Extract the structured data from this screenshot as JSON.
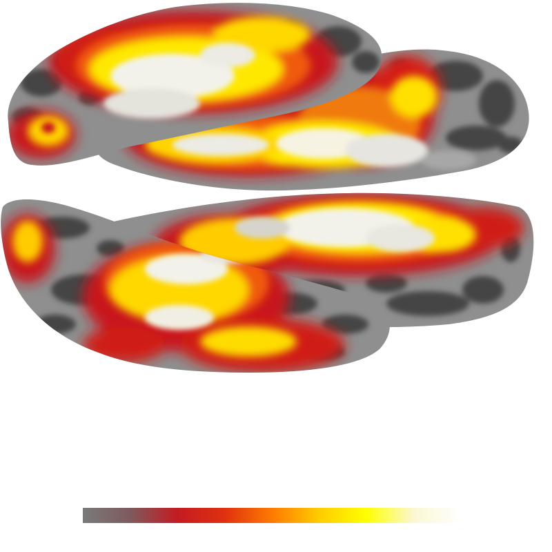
{
  "image": {
    "subject": "brain-surface-activation-map",
    "colors": {
      "background": "#ffffff",
      "cortex_light": "#8f8f8f",
      "cortex_dark": "#454545",
      "act_red": "#c8141c",
      "act_orange": "#f05a0a",
      "act_yellow": "#ffe800",
      "act_pale": "#f6f3e2"
    }
  },
  "colorbar": {
    "orientation": "horizontal",
    "stops": [
      "#7a7a7a",
      "#7e5a5d",
      "#c41b22",
      "#e03010",
      "#ff7a00",
      "#ffcc00",
      "#ffff00",
      "#fbf7d4",
      "#ffffff"
    ]
  }
}
